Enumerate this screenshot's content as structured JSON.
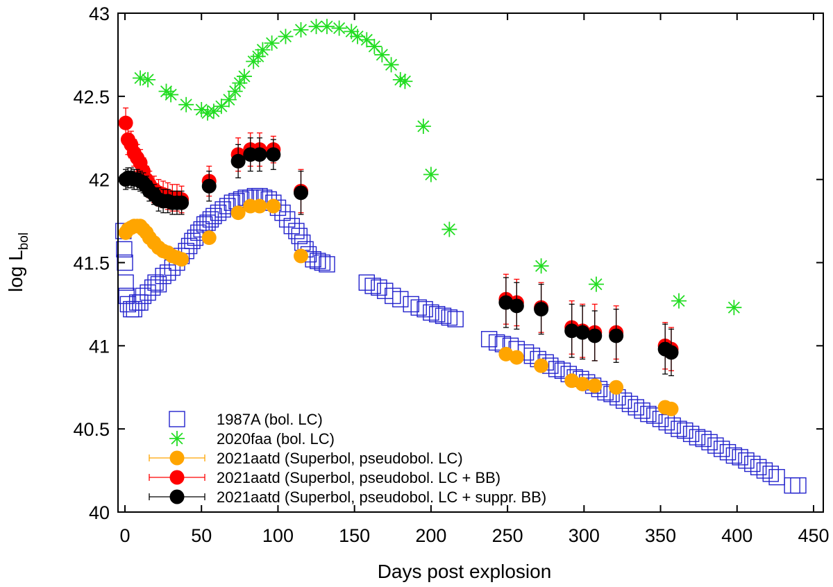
{
  "chart_data": {
    "type": "scatter",
    "xlabel": "Days post explosion",
    "ylabel_main": "log L",
    "ylabel_sub": "bol",
    "xlim": [
      -5,
      450
    ],
    "ylim": [
      40,
      43
    ],
    "xticks": [
      0,
      50,
      100,
      150,
      200,
      250,
      300,
      350,
      400,
      450
    ],
    "yticks": [
      40,
      40.5,
      41,
      41.5,
      42,
      42.5,
      43
    ],
    "ytick_labels": [
      "40",
      "40.5",
      "41",
      "41.5",
      "42",
      "42.5",
      "43"
    ],
    "legend_position": "bottom-left",
    "series": [
      {
        "name": "1987A (bol. LC)",
        "marker": "open-square",
        "color": "#2222cc",
        "points": [
          [
            -1,
            41.69
          ],
          [
            -0.5,
            41.58
          ],
          [
            0,
            41.5
          ],
          [
            0.5,
            41.38
          ],
          [
            1,
            41.3
          ],
          [
            2,
            41.25
          ],
          [
            4,
            41.22
          ],
          [
            6,
            41.22
          ],
          [
            8,
            41.26
          ],
          [
            10,
            41.26
          ],
          [
            12,
            41.3
          ],
          [
            15,
            41.32
          ],
          [
            18,
            41.35
          ],
          [
            20,
            41.38
          ],
          [
            22,
            41.37
          ],
          [
            25,
            41.42
          ],
          [
            28,
            41.44
          ],
          [
            31,
            41.47
          ],
          [
            34,
            41.5
          ],
          [
            37,
            41.54
          ],
          [
            40,
            41.57
          ],
          [
            42,
            41.6
          ],
          [
            44,
            41.63
          ],
          [
            46,
            41.65
          ],
          [
            48,
            41.68
          ],
          [
            50,
            41.7
          ],
          [
            52,
            41.73
          ],
          [
            54,
            41.74
          ],
          [
            56,
            41.76
          ],
          [
            58,
            41.78
          ],
          [
            61,
            41.8
          ],
          [
            64,
            41.82
          ],
          [
            67,
            41.84
          ],
          [
            70,
            41.86
          ],
          [
            73,
            41.87
          ],
          [
            76,
            41.88
          ],
          [
            79,
            41.89
          ],
          [
            82,
            41.89
          ],
          [
            85,
            41.9
          ],
          [
            88,
            41.9
          ],
          [
            91,
            41.89
          ],
          [
            94,
            41.88
          ],
          [
            97,
            41.86
          ],
          [
            100,
            41.83
          ],
          [
            103,
            41.8
          ],
          [
            106,
            41.76
          ],
          [
            109,
            41.72
          ],
          [
            112,
            41.69
          ],
          [
            114,
            41.66
          ],
          [
            116,
            41.62
          ],
          [
            118,
            41.58
          ],
          [
            120,
            41.55
          ],
          [
            123,
            41.52
          ],
          [
            126,
            41.51
          ],
          [
            129,
            41.5
          ],
          [
            132,
            41.49
          ],
          [
            158,
            41.38
          ],
          [
            162,
            41.36
          ],
          [
            166,
            41.35
          ],
          [
            170,
            41.33
          ],
          [
            175,
            41.3
          ],
          [
            180,
            41.28
          ],
          [
            187,
            41.25
          ],
          [
            192,
            41.23
          ],
          [
            196,
            41.22
          ],
          [
            200,
            41.2
          ],
          [
            204,
            41.19
          ],
          [
            208,
            41.18
          ],
          [
            212,
            41.17
          ],
          [
            216,
            41.16
          ],
          [
            238,
            41.04
          ],
          [
            243,
            41.02
          ],
          [
            247,
            41.01
          ],
          [
            252,
            41.0
          ],
          [
            256,
            40.98
          ],
          [
            262,
            40.96
          ],
          [
            266,
            40.94
          ],
          [
            270,
            40.92
          ],
          [
            275,
            40.9
          ],
          [
            278,
            40.88
          ],
          [
            282,
            40.86
          ],
          [
            286,
            40.85
          ],
          [
            290,
            40.83
          ],
          [
            294,
            40.81
          ],
          [
            298,
            40.8
          ],
          [
            302,
            40.78
          ],
          [
            306,
            40.76
          ],
          [
            310,
            40.74
          ],
          [
            314,
            40.72
          ],
          [
            318,
            40.71
          ],
          [
            322,
            40.69
          ],
          [
            326,
            40.67
          ],
          [
            330,
            40.65
          ],
          [
            334,
            40.63
          ],
          [
            338,
            40.61
          ],
          [
            342,
            40.59
          ],
          [
            346,
            40.58
          ],
          [
            350,
            40.56
          ],
          [
            354,
            40.54
          ],
          [
            358,
            40.52
          ],
          [
            362,
            40.5
          ],
          [
            366,
            40.49
          ],
          [
            370,
            40.47
          ],
          [
            374,
            40.45
          ],
          [
            378,
            40.44
          ],
          [
            382,
            40.42
          ],
          [
            386,
            40.4
          ],
          [
            390,
            40.38
          ],
          [
            394,
            40.36
          ],
          [
            398,
            40.34
          ],
          [
            402,
            40.33
          ],
          [
            406,
            40.31
          ],
          [
            410,
            40.29
          ],
          [
            414,
            40.27
          ],
          [
            418,
            40.25
          ],
          [
            422,
            40.23
          ],
          [
            426,
            40.21
          ],
          [
            436,
            40.16
          ],
          [
            440,
            40.16
          ]
        ]
      },
      {
        "name": "2020faa (bol. LC)",
        "marker": "asterisk",
        "color": "#22dd22",
        "points": [
          [
            10,
            42.61
          ],
          [
            15,
            42.6
          ],
          [
            27,
            42.53
          ],
          [
            30,
            42.51
          ],
          [
            40,
            42.45
          ],
          [
            50,
            42.42
          ],
          [
            54,
            42.4
          ],
          [
            58,
            42.41
          ],
          [
            63,
            42.44
          ],
          [
            68,
            42.48
          ],
          [
            72,
            42.53
          ],
          [
            75,
            42.58
          ],
          [
            78,
            42.62
          ],
          [
            84,
            42.71
          ],
          [
            87,
            42.74
          ],
          [
            90,
            42.78
          ],
          [
            96,
            42.82
          ],
          [
            105,
            42.86
          ],
          [
            115,
            42.9
          ],
          [
            125,
            42.92
          ],
          [
            132,
            42.92
          ],
          [
            140,
            42.91
          ],
          [
            148,
            42.89
          ],
          [
            152,
            42.86
          ],
          [
            158,
            42.84
          ],
          [
            163,
            42.8
          ],
          [
            168,
            42.75
          ],
          [
            174,
            42.69
          ],
          [
            180,
            42.6
          ],
          [
            183,
            42.59
          ],
          [
            195,
            42.32
          ],
          [
            200,
            42.03
          ],
          [
            212,
            41.7
          ],
          [
            272,
            41.48
          ],
          [
            308,
            41.37
          ],
          [
            362,
            41.27
          ],
          [
            398,
            41.23
          ]
        ]
      },
      {
        "name": "2021aatd (Superbol, pseudobol. LC)",
        "marker": "filled-circle",
        "color": "#ffa500",
        "points": [
          [
            0.5,
            41.68,
            0.03
          ],
          [
            2,
            41.7,
            0.03
          ],
          [
            4,
            41.71,
            0.03
          ],
          [
            6,
            41.72,
            0.03
          ],
          [
            8,
            41.72,
            0.03
          ],
          [
            10,
            41.72,
            0.03
          ],
          [
            12,
            41.7,
            0.03
          ],
          [
            14,
            41.68,
            0.03
          ],
          [
            16,
            41.65,
            0.03
          ],
          [
            19,
            41.62,
            0.03
          ],
          [
            22,
            41.59,
            0.03
          ],
          [
            25,
            41.57,
            0.03
          ],
          [
            28,
            41.56,
            0.03
          ],
          [
            31,
            41.54,
            0.03
          ],
          [
            34,
            41.53,
            0.03
          ],
          [
            37,
            41.52,
            0.03
          ],
          [
            55,
            41.65,
            0.03
          ],
          [
            74,
            41.8,
            0.03
          ],
          [
            82,
            41.84,
            0.03
          ],
          [
            88,
            41.84,
            0.03
          ],
          [
            97,
            41.84,
            0.03
          ],
          [
            115,
            41.54,
            0.03
          ],
          [
            249,
            40.95,
            0.03
          ],
          [
            256,
            40.93,
            0.03
          ],
          [
            272,
            40.88,
            0.03
          ],
          [
            292,
            40.79,
            0.03
          ],
          [
            299,
            40.77,
            0.03
          ],
          [
            307,
            40.76,
            0.03
          ],
          [
            321,
            40.75,
            0.03
          ],
          [
            353,
            40.63,
            0.03
          ],
          [
            357,
            40.62,
            0.03
          ]
        ]
      },
      {
        "name": "2021aatd (Superbol, pseudobol. LC + BB)",
        "marker": "filled-circle",
        "color": "#ff0000",
        "points": [
          [
            0.5,
            42.34,
            0.09
          ],
          [
            2,
            42.24,
            0.09
          ],
          [
            4,
            42.21,
            0.08
          ],
          [
            6,
            42.16,
            0.08
          ],
          [
            8,
            42.13,
            0.08
          ],
          [
            10,
            42.1,
            0.08
          ],
          [
            12,
            42.05,
            0.08
          ],
          [
            14,
            42.0,
            0.08
          ],
          [
            16,
            41.97,
            0.08
          ],
          [
            19,
            41.94,
            0.08
          ],
          [
            22,
            41.92,
            0.08
          ],
          [
            25,
            41.91,
            0.08
          ],
          [
            28,
            41.9,
            0.08
          ],
          [
            31,
            41.89,
            0.08
          ],
          [
            34,
            41.89,
            0.08
          ],
          [
            37,
            41.88,
            0.08
          ],
          [
            55,
            41.99,
            0.09
          ],
          [
            74,
            42.15,
            0.1
          ],
          [
            82,
            42.18,
            0.1
          ],
          [
            88,
            42.18,
            0.1
          ],
          [
            97,
            42.18,
            0.08
          ],
          [
            115,
            41.93,
            0.13
          ],
          [
            249,
            41.28,
            0.15
          ],
          [
            256,
            41.26,
            0.14
          ],
          [
            272,
            41.23,
            0.15
          ],
          [
            292,
            41.11,
            0.16
          ],
          [
            299,
            41.09,
            0.16
          ],
          [
            307,
            41.08,
            0.17
          ],
          [
            321,
            41.08,
            0.16
          ],
          [
            353,
            41.0,
            0.14
          ],
          [
            357,
            40.98,
            0.13
          ]
        ]
      },
      {
        "name": "2021aatd (Superbol, pseudobol. LC + suppr. BB)",
        "marker": "filled-circle",
        "color": "#000000",
        "points": [
          [
            0.5,
            42.0,
            0.06
          ],
          [
            2,
            42.01,
            0.06
          ],
          [
            4,
            42.01,
            0.06
          ],
          [
            6,
            42.0,
            0.06
          ],
          [
            8,
            42.0,
            0.06
          ],
          [
            10,
            41.99,
            0.06
          ],
          [
            12,
            41.98,
            0.06
          ],
          [
            14,
            41.96,
            0.06
          ],
          [
            16,
            41.93,
            0.06
          ],
          [
            19,
            41.91,
            0.06
          ],
          [
            22,
            41.88,
            0.07
          ],
          [
            25,
            41.87,
            0.07
          ],
          [
            28,
            41.87,
            0.07
          ],
          [
            31,
            41.86,
            0.07
          ],
          [
            34,
            41.86,
            0.07
          ],
          [
            37,
            41.86,
            0.07
          ],
          [
            55,
            41.96,
            0.09
          ],
          [
            74,
            42.11,
            0.1
          ],
          [
            82,
            42.15,
            0.1
          ],
          [
            88,
            42.15,
            0.1
          ],
          [
            97,
            42.15,
            0.09
          ],
          [
            115,
            41.92,
            0.13
          ],
          [
            249,
            41.26,
            0.15
          ],
          [
            256,
            41.24,
            0.14
          ],
          [
            272,
            41.22,
            0.15
          ],
          [
            292,
            41.09,
            0.16
          ],
          [
            299,
            41.08,
            0.16
          ],
          [
            307,
            41.06,
            0.15
          ],
          [
            321,
            41.06,
            0.16
          ],
          [
            353,
            40.98,
            0.15
          ],
          [
            357,
            40.96,
            0.14
          ]
        ]
      }
    ]
  }
}
